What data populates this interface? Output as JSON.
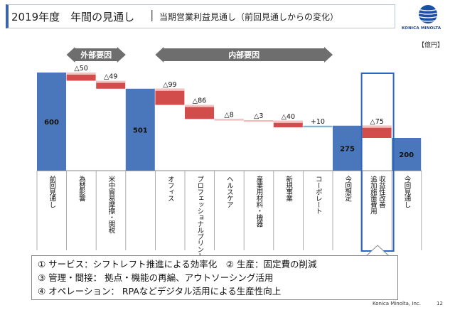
{
  "header": {
    "title": "2019年度　年間の見通し",
    "separator": "|",
    "subtitle": "当期営業利益見通し（前回見通しからの変化）",
    "brand": "KONICA MINOLTA",
    "unit": "【億円】"
  },
  "chart_data": {
    "type": "bar",
    "subtype": "waterfall",
    "group_labels": [
      "外部要因",
      "内部要因"
    ],
    "categories": [
      "前回見通し",
      "為替影響",
      "米中貿易摩擦・関税",
      "",
      "オフィス",
      "プロフェッショナルプリント",
      "ヘルスケア",
      "産業用材料・機器",
      "新規事業",
      "コーポレート",
      "今回想定",
      "収益性改善\n追加施策費用",
      "今回見通し"
    ],
    "bars": [
      {
        "category": "前回見通し",
        "kind": "total",
        "value": 600,
        "label": "600"
      },
      {
        "category": "為替影響",
        "kind": "delta",
        "value": -50,
        "label": "△50"
      },
      {
        "category": "米中貿易摩擦・関税",
        "kind": "delta",
        "value": -49,
        "label": "△49"
      },
      {
        "category": "",
        "kind": "total",
        "value": 501,
        "label": "501"
      },
      {
        "category": "オフィス",
        "kind": "delta",
        "value": -99,
        "label": "△99"
      },
      {
        "category": "プロフェッショナルプリント",
        "kind": "delta",
        "value": -86,
        "label": "△86"
      },
      {
        "category": "ヘルスケア",
        "kind": "delta",
        "value": -8,
        "label": "△8"
      },
      {
        "category": "産業用材料・機器",
        "kind": "delta",
        "value": -3,
        "label": "△3"
      },
      {
        "category": "新規事業",
        "kind": "delta",
        "value": -40,
        "label": "△40"
      },
      {
        "category": "コーポレート",
        "kind": "delta",
        "value": 10,
        "label": "+10"
      },
      {
        "category": "今回想定",
        "kind": "total",
        "value": 275,
        "label": "275"
      },
      {
        "category": "収益性改善\n追加施策費用",
        "kind": "delta",
        "value": -75,
        "label": "△75"
      },
      {
        "category": "今回見通し",
        "kind": "total",
        "value": 200,
        "label": "200"
      }
    ],
    "colors": {
      "total": "#4a76bb",
      "decrease": "#d24c4c",
      "increase": "#7fb3d5",
      "highlight_border": "#2c66c3"
    }
  },
  "notes": [
    "① サービス：シフトレフト推進による効率化　② 生産：固定費の削減",
    "③ 管理・間接：  拠点・機能の再編、アウトソーシング活用",
    "④ オペレーション：  RPAなどデジタル活用による生産性向上"
  ],
  "footer": {
    "company": "Konica Minolta, Inc.",
    "page": "12"
  }
}
